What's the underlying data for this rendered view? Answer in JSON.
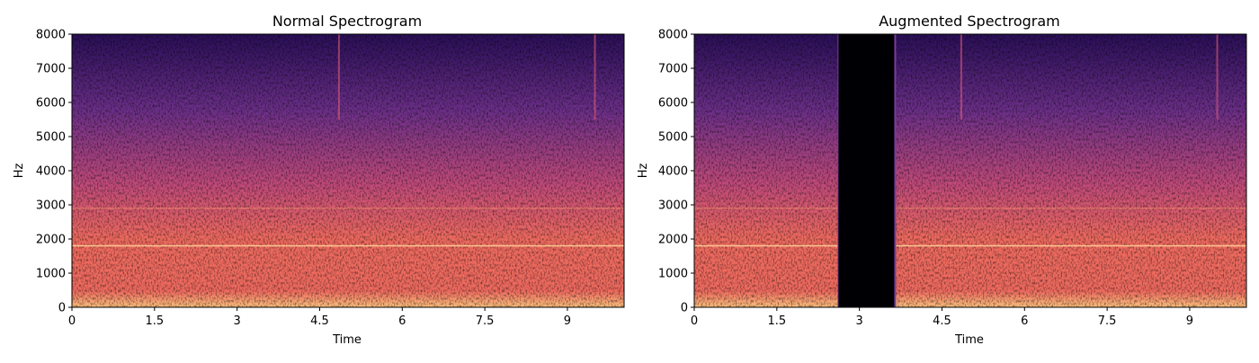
{
  "chart_data": [
    {
      "type": "heatmap",
      "title": "Normal Spectrogram",
      "xlabel": "Time",
      "ylabel": "Hz",
      "xlim": [
        0,
        10.03
      ],
      "ylim": [
        0,
        8000
      ],
      "xticks": [
        "0",
        "1.5",
        "3",
        "4.5",
        "6",
        "7.5",
        "9"
      ],
      "yticks": [
        "0",
        "1000",
        "2000",
        "3000",
        "4000",
        "5000",
        "6000",
        "7000",
        "8000"
      ],
      "colormap": "magma",
      "bright_lines_hz": [
        1800,
        2900
      ],
      "vertical_streaks_time": [
        4.85,
        9.5
      ],
      "masked_time_range": null
    },
    {
      "type": "heatmap",
      "title": "Augmented Spectrogram",
      "xlabel": "Time",
      "ylabel": "Hz",
      "xlim": [
        0,
        10.03
      ],
      "ylim": [
        0,
        8000
      ],
      "xticks": [
        "0",
        "1.5",
        "3",
        "4.5",
        "6",
        "7.5",
        "9"
      ],
      "yticks": [
        "0",
        "1000",
        "2000",
        "3000",
        "4000",
        "5000",
        "6000",
        "7000",
        "8000"
      ],
      "colormap": "magma",
      "bright_lines_hz": [
        1800,
        2900
      ],
      "vertical_streaks_time": [
        4.85,
        9.5
      ],
      "masked_time_range": [
        2.62,
        3.65
      ]
    }
  ],
  "colors": {
    "low": "#2a0f58",
    "mid_low": "#6b2f88",
    "mid": "#c04a7a",
    "mid_high": "#ee6a5f",
    "high": "#fdc27e",
    "mask": "#000004"
  }
}
